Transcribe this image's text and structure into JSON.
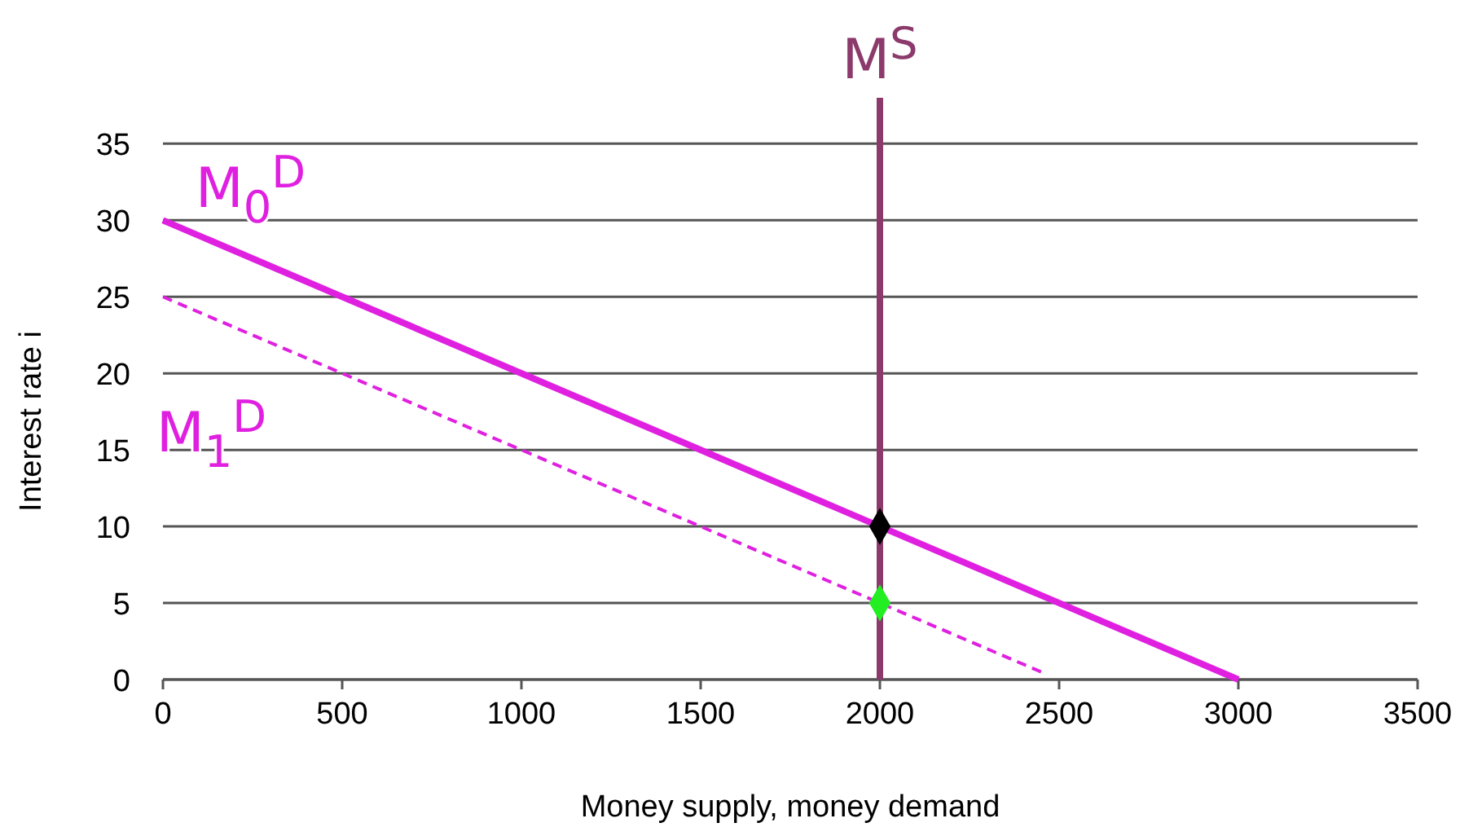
{
  "chart_data": {
    "type": "line",
    "xlabel": "Money supply, money demand",
    "ylabel": "Interest rate i",
    "xlim": [
      0,
      3500
    ],
    "xticks": [
      0,
      500,
      1000,
      1500,
      2000,
      2500,
      3000,
      3500
    ],
    "ylim": [
      0,
      38
    ],
    "yticks": [
      0,
      5,
      10,
      15,
      20,
      25,
      30,
      35
    ],
    "grid": "y",
    "series": [
      {
        "name": "M$_{0}$$^{D}$",
        "color": "#e020e0",
        "x": [
          0,
          3000
        ],
        "values": [
          30,
          0
        ],
        "line_style": "solid"
      },
      {
        "name": "M$_{1}$$^{D}$",
        "color": "#e020e0",
        "x": [
          0,
          2450
        ],
        "values": [
          25,
          0.5
        ],
        "line_style": "dashed"
      },
      {
        "type": "scatter",
        "color": "#000000",
        "x": [
          2000
        ],
        "values": [
          10
        ],
        "marker": "diamond"
      },
      {
        "type": "scatter",
        "color": "#22ee22",
        "x": [
          2000
        ],
        "values": [
          5
        ],
        "marker": "diamond"
      }
    ],
    "ref_lines": [
      {
        "axis": "x",
        "value": 2000,
        "label": "M$^{S}$",
        "color": "#8b3a6b"
      }
    ]
  }
}
